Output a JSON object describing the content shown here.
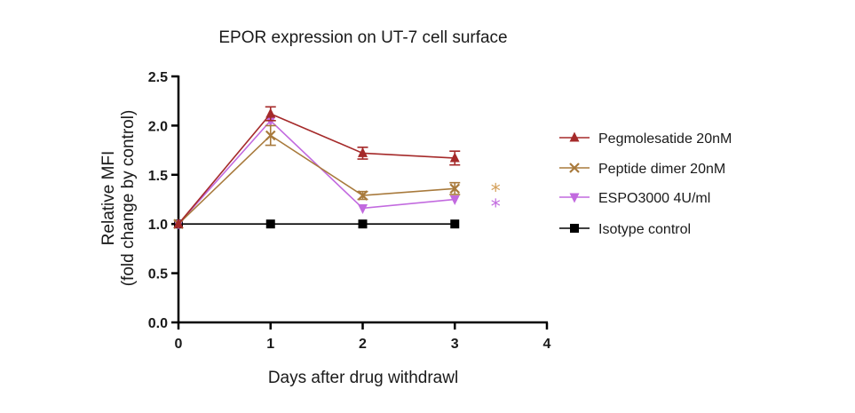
{
  "chart_data": {
    "type": "line",
    "title": "EPOR expression on UT-7 cell surface",
    "xlabel": "Days after drug withdrawl",
    "ylabel": [
      "Relative MFI",
      "(fold change by control)"
    ],
    "xlim": [
      0,
      4
    ],
    "ylim": [
      0,
      2.5
    ],
    "x_ticks": [
      0,
      1,
      2,
      3,
      4
    ],
    "y_ticks": [
      "0.0",
      "0.5",
      "1.0",
      "1.5",
      "2.0",
      "2.5"
    ],
    "grid": false,
    "legend_position": "right",
    "series": [
      {
        "name": "Pegmolesatide 20nM",
        "color": "#a52a2a",
        "marker": "triangle-up",
        "x": [
          0,
          1,
          2,
          3
        ],
        "y": [
          1.0,
          2.12,
          1.72,
          1.67
        ],
        "err": [
          0,
          0.07,
          0.06,
          0.07
        ]
      },
      {
        "name": "Peptide dimer 20nM",
        "color": "#a87a3c",
        "marker": "x",
        "x": [
          0,
          1,
          2,
          3
        ],
        "y": [
          1.0,
          1.9,
          1.29,
          1.36
        ],
        "err": [
          0,
          0.1,
          0.04,
          0.06
        ]
      },
      {
        "name": "ESPO3000 4U/ml",
        "color": "#c26adf",
        "marker": "triangle-down",
        "x": [
          0,
          1,
          2,
          3
        ],
        "y": [
          1.0,
          2.05,
          1.16,
          1.25
        ],
        "err": [
          0,
          0,
          0,
          0
        ]
      },
      {
        "name": "Isotype control",
        "color": "#000000",
        "marker": "square",
        "x": [
          0,
          1,
          2,
          3
        ],
        "y": [
          1.0,
          1.0,
          1.0,
          1.0
        ],
        "err": [
          0,
          0,
          0,
          0
        ]
      }
    ],
    "annotations": [
      {
        "text": "*",
        "color": "#d4a05a",
        "x": 3.25,
        "y": 1.36
      },
      {
        "text": "*",
        "color": "#c26adf",
        "x": 3.25,
        "y": 1.2
      }
    ]
  }
}
